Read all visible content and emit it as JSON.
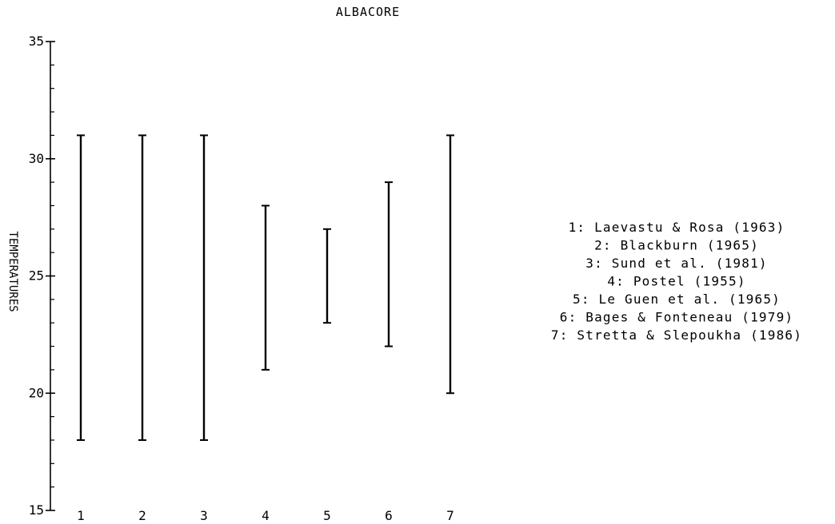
{
  "chart_data": {
    "type": "range",
    "title": "ALBACORE",
    "ylabel": "TEMPERATURES",
    "xlabel": "",
    "ylim": [
      15,
      35
    ],
    "y_ticks": [
      "15",
      "20",
      "25",
      "30",
      "35"
    ],
    "categories": [
      "1",
      "2",
      "3",
      "4",
      "5",
      "6",
      "7"
    ],
    "ranges": [
      {
        "category": "1",
        "low": 18,
        "high": 31
      },
      {
        "category": "2",
        "low": 18,
        "high": 31
      },
      {
        "category": "3",
        "low": 18,
        "high": 31
      },
      {
        "category": "4",
        "low": 21,
        "high": 28
      },
      {
        "category": "5",
        "low": 23,
        "high": 27
      },
      {
        "category": "6",
        "low": 22,
        "high": 29
      },
      {
        "category": "7",
        "low": 20,
        "high": 31
      }
    ],
    "legend": [
      "1: Laevastu & Rosa (1963)",
      "2: Blackburn (1965)",
      "3: Sund et al. (1981)",
      "4: Postel (1955)",
      "5: Le Guen et al. (1965)",
      "6: Bages & Fonteneau (1979)",
      "7: Stretta & Slepoukha (1986)"
    ],
    "line_color": "#000000"
  }
}
